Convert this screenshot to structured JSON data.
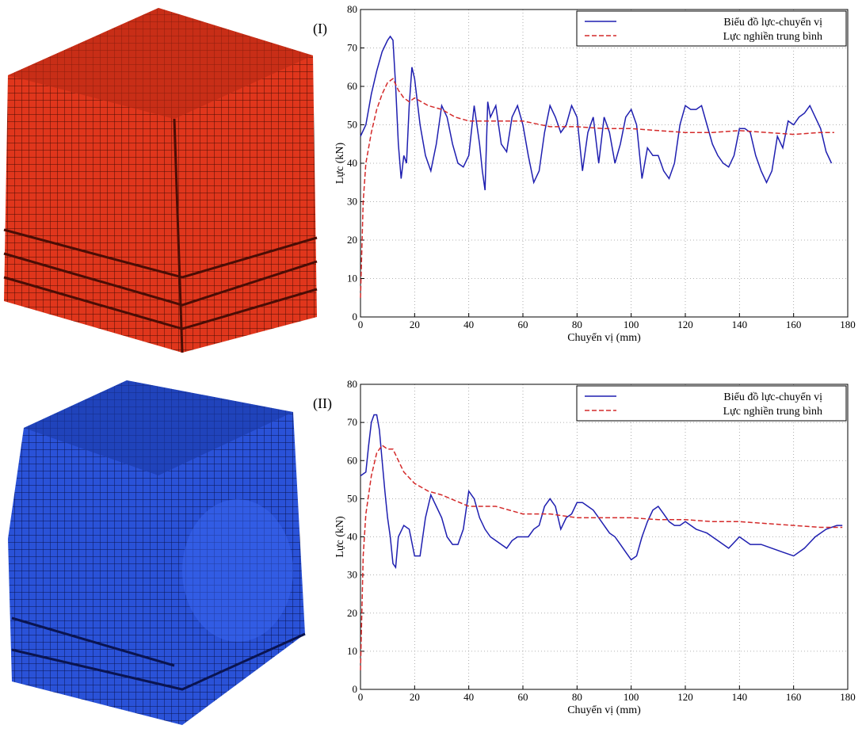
{
  "chart_data": [
    {
      "type": "line",
      "panel_label": "(I)",
      "x_label": "Chuyển vị (mm)",
      "y_label": "Lực (kN)",
      "xlim": [
        0,
        180
      ],
      "ylim": [
        0,
        80
      ],
      "xticks": [
        0,
        20,
        40,
        60,
        80,
        100,
        120,
        140,
        160,
        180
      ],
      "yticks": [
        0,
        10,
        20,
        30,
        40,
        50,
        60,
        70,
        80
      ],
      "grid": true,
      "legend": "upper right",
      "series": [
        {
          "name": "Biểu đồ lực-chuyển vị",
          "color": "#1f1fb0",
          "dash": false,
          "x": [
            0,
            2,
            4,
            6,
            8,
            10,
            11,
            12,
            13,
            14,
            15,
            16,
            17,
            18,
            19,
            20,
            22,
            24,
            26,
            28,
            30,
            32,
            34,
            36,
            38,
            40,
            42,
            44,
            45,
            46,
            47,
            48,
            50,
            52,
            54,
            56,
            58,
            60,
            62,
            64,
            66,
            68,
            70,
            72,
            74,
            76,
            78,
            80,
            82,
            84,
            86,
            88,
            90,
            92,
            94,
            96,
            98,
            100,
            102,
            104,
            106,
            108,
            110,
            112,
            114,
            116,
            118,
            120,
            122,
            124,
            126,
            128,
            130,
            132,
            134,
            136,
            138,
            140,
            142,
            144,
            146,
            148,
            150,
            152,
            154,
            156,
            158,
            160,
            162,
            164,
            166,
            168,
            170,
            172,
            174
          ],
          "values": [
            47,
            50,
            58,
            64,
            69,
            72,
            73,
            72,
            60,
            45,
            36,
            42,
            40,
            55,
            65,
            62,
            50,
            42,
            38,
            45,
            55,
            52,
            45,
            40,
            39,
            42,
            55,
            45,
            38,
            33,
            56,
            52,
            55,
            45,
            43,
            52,
            55,
            50,
            42,
            35,
            38,
            48,
            55,
            52,
            48,
            50,
            55,
            52,
            38,
            48,
            52,
            40,
            52,
            48,
            40,
            45,
            52,
            54,
            50,
            36,
            44,
            42,
            42,
            38,
            36,
            40,
            50,
            55,
            54,
            54,
            55,
            50,
            45,
            42,
            40,
            39,
            42,
            49,
            49,
            48,
            42,
            38,
            35,
            38,
            47,
            44,
            51,
            50,
            52,
            53,
            55,
            52,
            49,
            43,
            40
          ]
        },
        {
          "name": "Lực nghiền trung bình",
          "color": "#d42a2a",
          "dash": true,
          "x": [
            0,
            1,
            2,
            4,
            6,
            8,
            10,
            12,
            14,
            16,
            18,
            20,
            25,
            30,
            35,
            40,
            45,
            50,
            60,
            70,
            80,
            90,
            100,
            110,
            120,
            130,
            140,
            150,
            160,
            170,
            175
          ],
          "values": [
            5,
            30,
            40,
            48,
            54,
            58,
            61,
            62,
            59,
            57,
            56,
            57,
            55,
            54,
            52,
            51,
            51,
            51,
            51,
            49.5,
            49.5,
            49,
            49,
            48.5,
            48,
            48,
            48.5,
            48,
            47.5,
            48,
            48
          ]
        }
      ]
    },
    {
      "type": "line",
      "panel_label": "(II)",
      "x_label": "Chuyển vị (mm)",
      "y_label": "Lực (kN)",
      "xlim": [
        0,
        180
      ],
      "ylim": [
        0,
        80
      ],
      "xticks": [
        0,
        20,
        40,
        60,
        80,
        100,
        120,
        140,
        160,
        180
      ],
      "yticks": [
        0,
        10,
        20,
        30,
        40,
        50,
        60,
        70,
        80
      ],
      "grid": true,
      "legend": "upper right",
      "series": [
        {
          "name": "Biểu đồ lực-chuyển vị",
          "color": "#1f1fb0",
          "dash": false,
          "x": [
            0,
            2,
            3,
            4,
            5,
            6,
            7,
            8,
            9,
            10,
            11,
            12,
            13,
            14,
            16,
            18,
            20,
            22,
            24,
            26,
            28,
            30,
            32,
            34,
            36,
            38,
            40,
            42,
            44,
            46,
            48,
            50,
            52,
            54,
            56,
            58,
            60,
            62,
            64,
            66,
            68,
            70,
            72,
            74,
            76,
            78,
            80,
            82,
            84,
            86,
            88,
            90,
            92,
            94,
            96,
            98,
            100,
            102,
            104,
            106,
            108,
            110,
            112,
            114,
            116,
            118,
            120,
            124,
            128,
            132,
            136,
            140,
            144,
            148,
            152,
            156,
            160,
            164,
            168,
            172,
            176,
            178
          ],
          "values": [
            56,
            57,
            64,
            70,
            72,
            72,
            68,
            60,
            52,
            45,
            40,
            33,
            32,
            40,
            43,
            42,
            35,
            35,
            45,
            51,
            48,
            45,
            40,
            38,
            38,
            42,
            52,
            50,
            45,
            42,
            40,
            39,
            38,
            37,
            39,
            40,
            40,
            40,
            42,
            43,
            48,
            50,
            48,
            42,
            45,
            46,
            49,
            49,
            48,
            47,
            45,
            43,
            41,
            40,
            38,
            36,
            34,
            35,
            40,
            44,
            47,
            48,
            46,
            44,
            43,
            43,
            44,
            42,
            41,
            39,
            37,
            40,
            38,
            38,
            37,
            36,
            35,
            37,
            40,
            42,
            43,
            43
          ]
        },
        {
          "name": "Lực nghiền trung bình",
          "color": "#d42a2a",
          "dash": true,
          "x": [
            0,
            1,
            2,
            4,
            6,
            8,
            10,
            12,
            14,
            16,
            20,
            25,
            30,
            40,
            50,
            60,
            70,
            80,
            90,
            100,
            110,
            120,
            130,
            140,
            150,
            160,
            170,
            178
          ],
          "values": [
            5,
            35,
            46,
            56,
            62,
            64,
            63,
            63,
            60,
            57,
            54,
            52,
            51,
            48,
            48,
            46,
            46,
            45,
            45,
            45,
            44.5,
            44.5,
            44,
            44,
            43.5,
            43,
            42.5,
            42.5
          ]
        }
      ]
    }
  ]
}
